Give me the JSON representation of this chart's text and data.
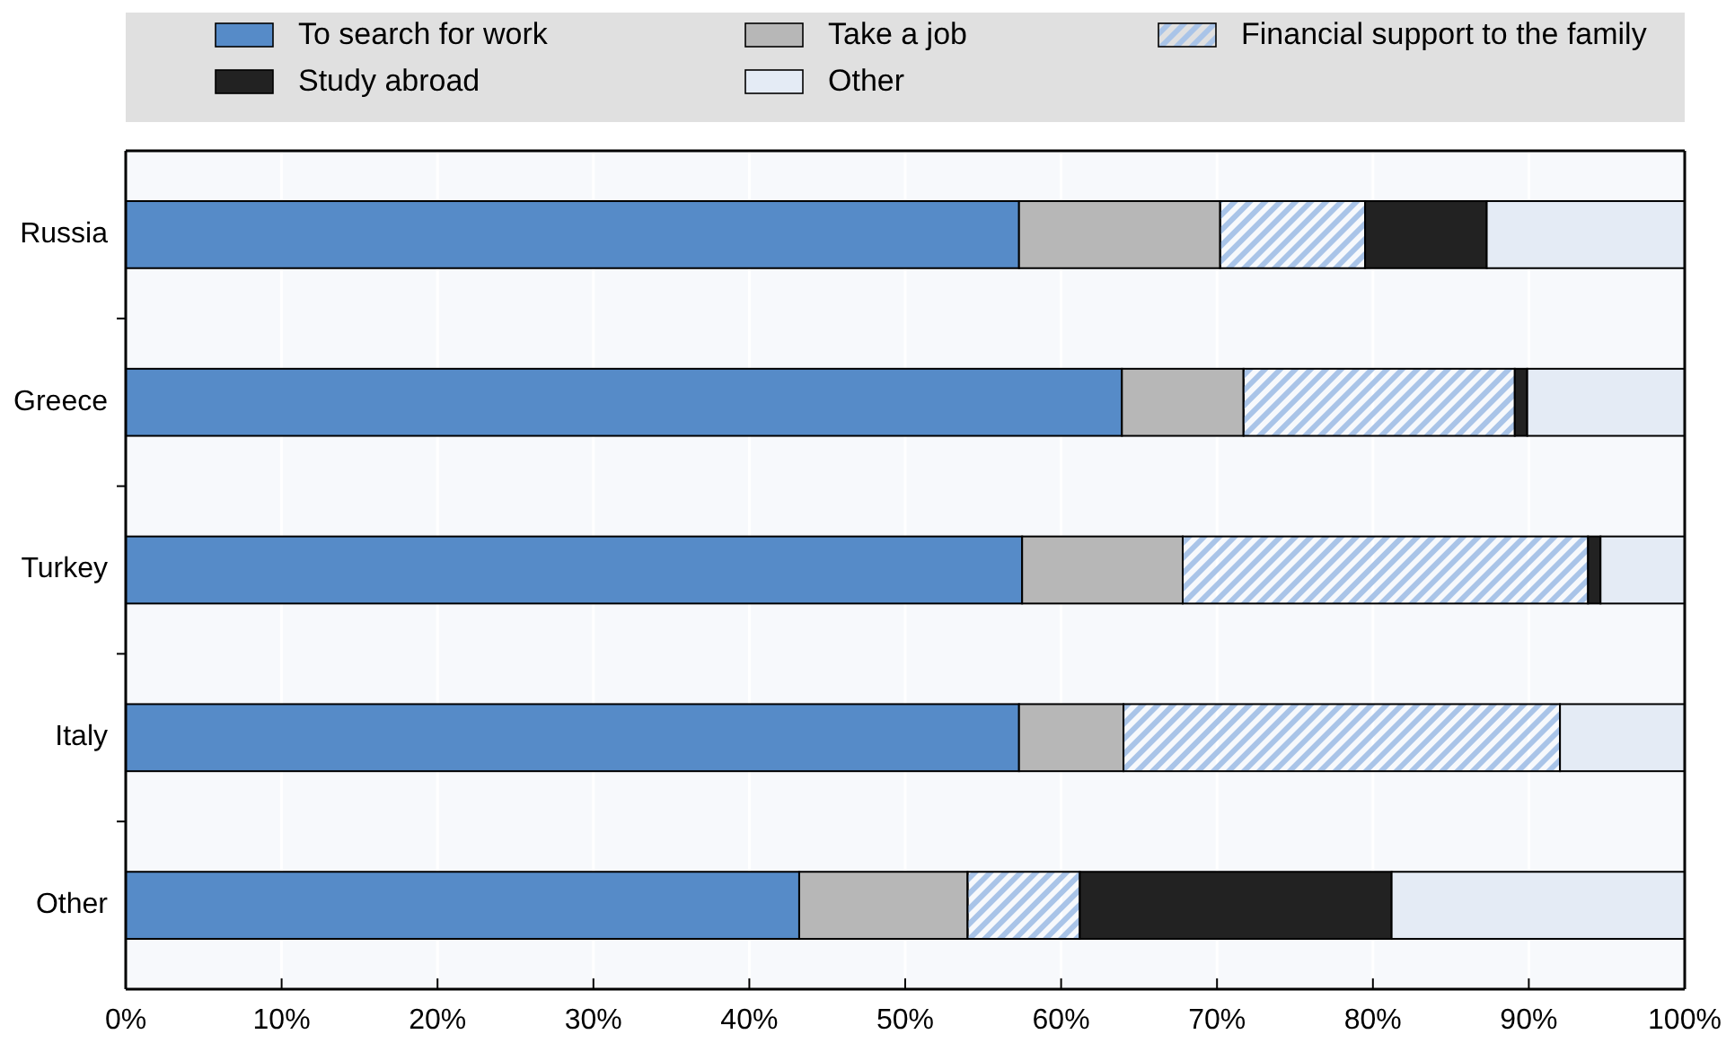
{
  "chart_data": {
    "type": "bar",
    "orientation": "horizontal",
    "stacked": true,
    "categories": [
      "Russia",
      "Greece",
      "Turkey",
      "Italy",
      "Other"
    ],
    "series": [
      {
        "name": "To search for work",
        "color": "#568bc8",
        "values": [
          57.3,
          63.9,
          57.5,
          57.3,
          43.2
        ]
      },
      {
        "name": "Take a job",
        "color": "#b7b7b7",
        "values": [
          12.9,
          7.8,
          10.3,
          6.7,
          10.8
        ]
      },
      {
        "name": "Financial support to the family",
        "color": "#a9c4e8",
        "values": [
          9.3,
          17.4,
          26.0,
          28.0,
          7.2
        ]
      },
      {
        "name": "Study abroad",
        "color": "#222222",
        "values": [
          7.8,
          0.8,
          0.8,
          0,
          20.0
        ]
      },
      {
        "name": "Other",
        "color": "#e4ebf5",
        "values": [
          12.7,
          10.1,
          5.4,
          8.0,
          18.8
        ]
      }
    ],
    "xlim": [
      0,
      100
    ],
    "xticks": [
      {
        "value": 0,
        "label": "0%"
      },
      {
        "value": 10,
        "label": "10%"
      },
      {
        "value": 20,
        "label": "20%"
      },
      {
        "value": 30,
        "label": "30%"
      },
      {
        "value": 40,
        "label": "40%"
      },
      {
        "value": 50,
        "label": "50%"
      },
      {
        "value": 60,
        "label": "60%"
      },
      {
        "value": 70,
        "label": "70%"
      },
      {
        "value": 80,
        "label": "80%"
      },
      {
        "value": 90,
        "label": "90%"
      },
      {
        "value": 100,
        "label": "100%"
      }
    ],
    "grid": "x",
    "legend": "top"
  }
}
